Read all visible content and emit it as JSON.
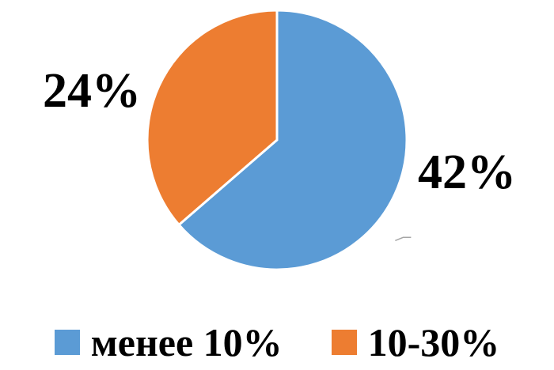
{
  "chart_data": {
    "type": "pie",
    "categories": [
      "менее 10%",
      "10-30%"
    ],
    "values": [
      42,
      24
    ],
    "value_labels": [
      "42%",
      "24%"
    ],
    "colors": [
      "#5B9BD5",
      "#ED7D31"
    ],
    "start_angle": "top, clockwise",
    "legend_position": "bottom"
  }
}
